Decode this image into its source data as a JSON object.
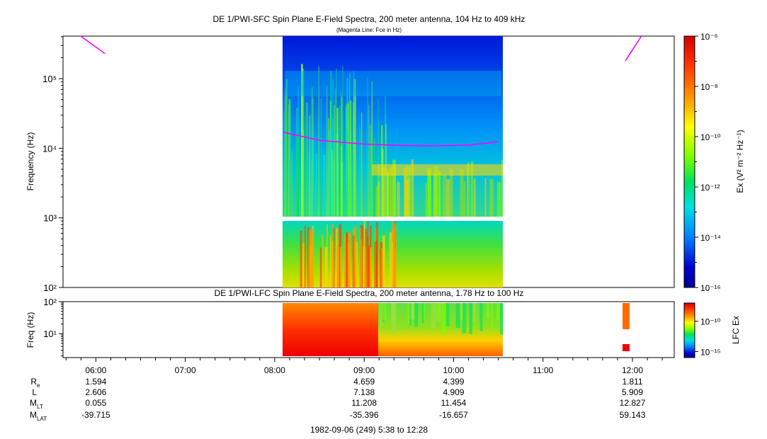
{
  "chart_data": [
    {
      "type": "heatmap",
      "title": "DE 1/PWI-SFC  Spin Plane E-Field Spectra, 200 meter antenna, 104 Hz to 409 kHz",
      "subtitle": "(Magenta Line: Fce in Hz)",
      "ylabel": "Frequency (Hz)",
      "yscale": "log",
      "ylim": [
        100,
        409000
      ],
      "y_tick_labels": [
        "10²",
        "10³",
        "10⁴",
        "10⁵"
      ],
      "x_range_hours": [
        5.633,
        12.467
      ],
      "data_span_hours": [
        8.1,
        10.55
      ],
      "colorbar": {
        "label": "Ex (V² m⁻² Hz⁻¹)",
        "scale": "log",
        "range": [
          1e-16,
          1e-06
        ],
        "tick_labels": [
          "10⁻⁶",
          "10⁻⁸",
          "10⁻¹⁰",
          "10⁻¹²",
          "10⁻¹⁴",
          "10⁻¹⁶"
        ]
      },
      "fce_line": {
        "color": "#ff00ff",
        "segments": [
          {
            "x": [
              5.83,
              6.1
            ],
            "y": [
              409000,
              230000
            ]
          },
          {
            "x": [
              8.1,
              8.5,
              9.0,
              9.4,
              9.8,
              10.2,
              10.5
            ],
            "y": [
              17000,
              13000,
              11500,
              11000,
              10800,
              11200,
              12500
            ]
          },
          {
            "x": [
              11.92,
              12.1
            ],
            "y": [
              180000,
              409000
            ]
          }
        ]
      }
    },
    {
      "type": "heatmap",
      "title": "DE 1/PWI-LFC  Spin Plane E-Field Spectra, 200 meter antenna, 1.78 Hz to 100 Hz",
      "ylabel": "Freq (Hz)",
      "yscale": "log",
      "ylim": [
        1.78,
        100
      ],
      "y_tick_labels": [
        "10¹",
        "10²"
      ],
      "data_span_hours": [
        8.1,
        10.55
      ],
      "colorbar": {
        "label": "LFC Ex",
        "scale": "log",
        "range": [
          1e-16,
          1e-07
        ],
        "tick_labels": [
          "10⁻¹⁰",
          "10⁻¹⁵"
        ]
      }
    }
  ],
  "x_axis": {
    "tick_labels": [
      "06:00",
      "07:00",
      "08:00",
      "09:00",
      "10:00",
      "11:00",
      "12:00"
    ],
    "tick_hours": [
      6,
      7,
      8,
      9,
      10,
      11,
      12
    ]
  },
  "ephemeris": {
    "rows": [
      {
        "label": "R",
        "sub": "e",
        "values": [
          "1.594",
          "",
          "",
          "4.659",
          "4.399",
          "",
          "1.811"
        ]
      },
      {
        "label": "L",
        "sub": "",
        "values": [
          "2.606",
          "",
          "",
          "7.138",
          "4.909",
          "",
          "5.909"
        ]
      },
      {
        "label": "M",
        "sub": "LT",
        "values": [
          "0.055",
          "",
          "",
          "11.208",
          "11.454",
          "",
          "12.827"
        ]
      },
      {
        "label": "M",
        "sub": "LAT",
        "values": [
          "-39.715",
          "",
          "",
          "-35.396",
          "-16.657",
          "",
          "59.143"
        ]
      }
    ]
  },
  "footer": "1982-09-06 (249) 5:38 to 12:28"
}
